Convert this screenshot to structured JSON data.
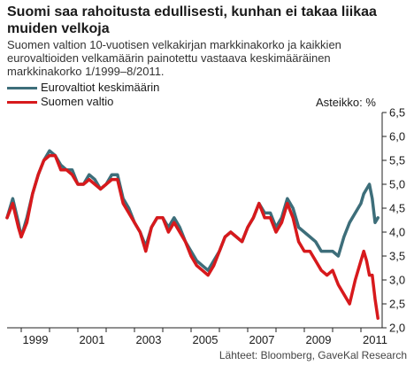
{
  "title": "Suomi saa rahoitusta edullisesti, kunhan ei takaa liikaa muiden velkoja",
  "subtitle": "Suomen valtion 10-vuotisen velkakirjan markkinakorko ja kaikkien eurovaltioiden velkamäärin painotettu vastaava keskimääräinen markkinakorko 1/1999–8/2011.",
  "scale_note": "Asteikko: %",
  "source": "Lähteet: Bloomberg, GaveKal Research",
  "colors": {
    "euro": "#3d6e7a",
    "finland": "#d7191c"
  },
  "chart_data": {
    "type": "line",
    "ylim": [
      2.0,
      6.5
    ],
    "yticks": [
      "6,5",
      "6,0",
      "5,5",
      "5,0",
      "4,5",
      "4,0",
      "3,5",
      "3,0",
      "2,5",
      "2,0"
    ],
    "xlim": [
      1998.5,
      2011.75
    ],
    "xticks": [
      "1999",
      "2001",
      "2003",
      "2005",
      "2007",
      "2009",
      "2011"
    ],
    "legend": [
      "Eurovaltiot keskimäärin",
      "Suomen valtio"
    ],
    "grid": false,
    "series": [
      {
        "name": "Eurovaltiot keskimäärin",
        "color": "#3d6e7a",
        "x": [
          1998.5,
          1998.7,
          1998.9,
          1999.0,
          1999.2,
          1999.4,
          1999.6,
          1999.8,
          2000.0,
          2000.2,
          2000.4,
          2000.6,
          2000.8,
          2001.0,
          2001.2,
          2001.4,
          2001.6,
          2001.8,
          2002.0,
          2002.2,
          2002.4,
          2002.6,
          2002.8,
          2003.0,
          2003.2,
          2003.4,
          2003.6,
          2003.8,
          2004.0,
          2004.2,
          2004.4,
          2004.6,
          2004.8,
          2005.0,
          2005.2,
          2005.4,
          2005.6,
          2005.8,
          2006.0,
          2006.2,
          2006.4,
          2006.6,
          2006.8,
          2007.0,
          2007.2,
          2007.4,
          2007.6,
          2007.8,
          2008.0,
          2008.2,
          2008.4,
          2008.6,
          2008.8,
          2009.0,
          2009.2,
          2009.4,
          2009.6,
          2009.8,
          2010.0,
          2010.2,
          2010.4,
          2010.6,
          2010.8,
          2011.0,
          2011.1,
          2011.2,
          2011.3,
          2011.4,
          2011.5,
          2011.6
        ],
        "values": [
          4.3,
          4.7,
          4.2,
          3.9,
          4.3,
          4.8,
          5.2,
          5.5,
          5.7,
          5.6,
          5.4,
          5.3,
          5.3,
          5.0,
          5.0,
          5.2,
          5.1,
          4.9,
          5.0,
          5.2,
          5.2,
          4.7,
          4.5,
          4.2,
          4.0,
          3.7,
          4.1,
          4.3,
          4.3,
          4.1,
          4.3,
          4.1,
          3.8,
          3.6,
          3.4,
          3.3,
          3.2,
          3.4,
          3.6,
          3.9,
          4.0,
          3.9,
          3.8,
          4.1,
          4.3,
          4.6,
          4.4,
          4.4,
          4.1,
          4.3,
          4.7,
          4.5,
          4.1,
          4.0,
          3.9,
          3.8,
          3.6,
          3.6,
          3.6,
          3.5,
          3.9,
          4.2,
          4.4,
          4.6,
          4.8,
          4.9,
          5.0,
          4.7,
          4.2,
          4.3
        ]
      },
      {
        "name": "Suomen valtio",
        "color": "#d7191c",
        "x": [
          1998.5,
          1998.7,
          1998.9,
          1999.0,
          1999.2,
          1999.4,
          1999.6,
          1999.8,
          2000.0,
          2000.2,
          2000.4,
          2000.6,
          2000.8,
          2001.0,
          2001.2,
          2001.4,
          2001.6,
          2001.8,
          2002.0,
          2002.2,
          2002.4,
          2002.6,
          2002.8,
          2003.0,
          2003.2,
          2003.4,
          2003.6,
          2003.8,
          2004.0,
          2004.2,
          2004.4,
          2004.6,
          2004.8,
          2005.0,
          2005.2,
          2005.4,
          2005.6,
          2005.8,
          2006.0,
          2006.2,
          2006.4,
          2006.6,
          2006.8,
          2007.0,
          2007.2,
          2007.4,
          2007.6,
          2007.8,
          2008.0,
          2008.2,
          2008.4,
          2008.6,
          2008.8,
          2009.0,
          2009.2,
          2009.4,
          2009.6,
          2009.8,
          2010.0,
          2010.2,
          2010.4,
          2010.6,
          2010.8,
          2011.0,
          2011.1,
          2011.2,
          2011.3,
          2011.4,
          2011.5,
          2011.6
        ],
        "values": [
          4.3,
          4.6,
          4.1,
          3.9,
          4.2,
          4.8,
          5.2,
          5.5,
          5.6,
          5.6,
          5.3,
          5.3,
          5.2,
          5.0,
          5.0,
          5.1,
          5.0,
          4.9,
          5.0,
          5.1,
          5.1,
          4.6,
          4.4,
          4.2,
          4.0,
          3.6,
          4.1,
          4.3,
          4.3,
          4.0,
          4.2,
          4.0,
          3.8,
          3.5,
          3.3,
          3.2,
          3.1,
          3.3,
          3.6,
          3.9,
          4.0,
          3.9,
          3.8,
          4.1,
          4.3,
          4.6,
          4.3,
          4.3,
          4.0,
          4.2,
          4.6,
          4.3,
          3.8,
          3.6,
          3.6,
          3.4,
          3.2,
          3.1,
          3.2,
          2.9,
          2.7,
          2.5,
          3.0,
          3.4,
          3.6,
          3.4,
          3.1,
          3.1,
          2.6,
          2.2
        ]
      }
    ]
  }
}
